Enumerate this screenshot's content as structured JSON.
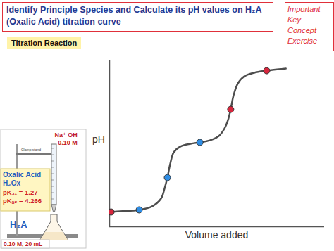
{
  "chart_data": {
    "type": "line",
    "title": "Identify Principle Species and Calculate its pH values on H₂A (Oxalic Acid) titration curve",
    "x_label": "Volume added",
    "y_label": "pH",
    "x": [
      0.5,
      3.6,
      10.2,
      14.6,
      17.7,
      18.9,
      19.9,
      20.9,
      22.1,
      24.3,
      27.9,
      31.1,
      34.5,
      37.6,
      39.6,
      40.8,
      41.7,
      42.7,
      44.2,
      46.4,
      49.8,
      54.1,
      58.3,
      60.7
    ],
    "values": [
      1.24,
      1.3,
      1.42,
      1.71,
      2.36,
      3.19,
      4.13,
      5.32,
      6.26,
      6.73,
      6.97,
      7.09,
      7.26,
      7.62,
      8.27,
      8.98,
      9.86,
      11.05,
      12.05,
      12.64,
      12.94,
      13.11,
      13.23,
      13.29
    ],
    "color": "#4d4d4d",
    "points": {
      "x": [
        0.5,
        10.2,
        19.9,
        31.1,
        41.7,
        54.1
      ],
      "values": [
        1.24,
        1.42,
        4.13,
        7.09,
        9.86,
        13.11
      ],
      "colors": [
        "#d7263d",
        "#2f8de4",
        "#2f8de4",
        "#2f8de4",
        "#d7263d",
        "#d7263d"
      ],
      "marker": "circle"
    },
    "xlim": [
      0,
      74
    ],
    "ylim": [
      0,
      14
    ],
    "tick_labels": false,
    "grid": false
  },
  "slide": {
    "badge": [
      "Important",
      "Key",
      "Concept",
      "Exercise"
    ],
    "section": "Titration Reaction",
    "apparatus": {
      "titrant": [
        "Na⁺ OH⁻",
        "0.10 M"
      ],
      "stand": "Clamp stand",
      "analyte_info": [
        "Oxalic Acid",
        "H₂Ox"
      ],
      "constants": [
        "pKₐ₁ = 1.27",
        "pKₐ₂ = 4.266"
      ],
      "formula": "H₂A",
      "amount": "0.10 M, 20 mL"
    }
  }
}
